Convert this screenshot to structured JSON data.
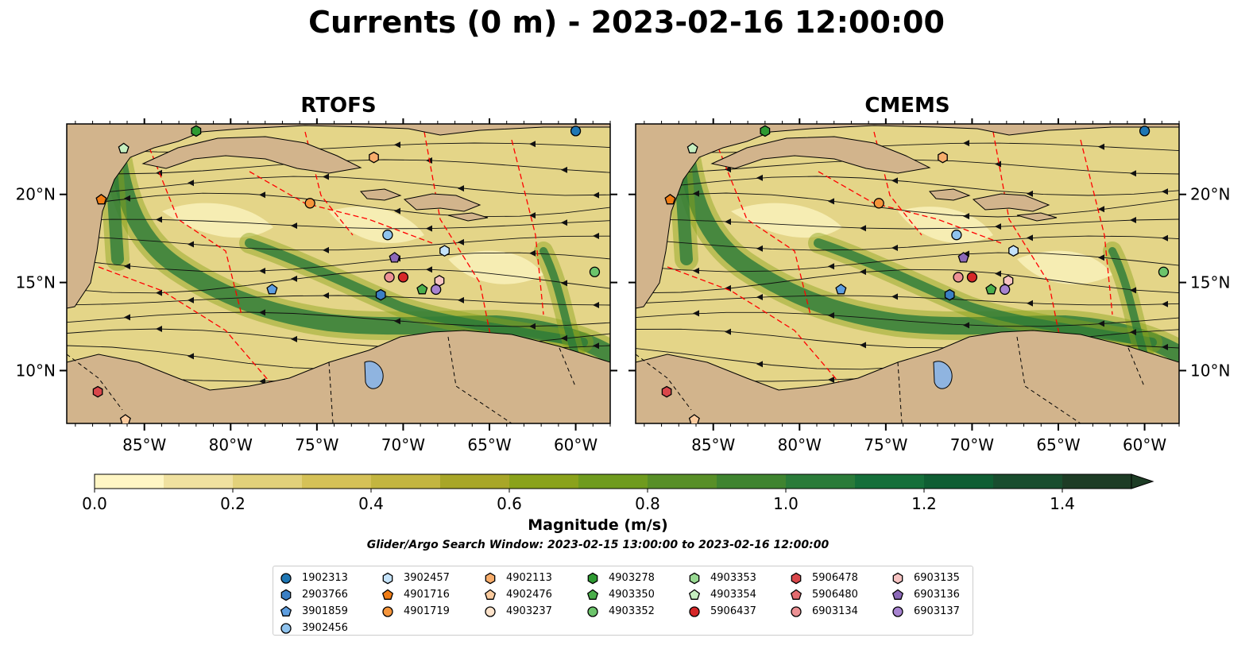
{
  "title": "Currents (0 m) - 2023-02-16 12:00:00",
  "chart_data": [
    {
      "type": "map",
      "title": "RTOFS",
      "xticks": [
        "85°W",
        "80°W",
        "75°W",
        "70°W",
        "65°W",
        "60°W"
      ],
      "yticks": [
        "10°N",
        "15°N",
        "20°N"
      ],
      "xlim": [
        -89.5,
        -58.0
      ],
      "ylim": [
        7.0,
        24.0
      ],
      "variable": "surface current magnitude (m/s)"
    },
    {
      "type": "map",
      "title": "CMEMS",
      "xticks": [
        "85°W",
        "80°W",
        "75°W",
        "70°W",
        "65°W",
        "60°W"
      ],
      "yticks": [
        "10°N",
        "15°N",
        "20°N"
      ],
      "xlim": [
        -89.5,
        -58.0
      ],
      "ylim": [
        7.0,
        24.0
      ],
      "variable": "surface current magnitude (m/s)"
    }
  ],
  "colorbar": {
    "label": "Magnitude (m/s)",
    "ticks": [
      "0.0",
      "0.2",
      "0.4",
      "0.6",
      "0.8",
      "1.0",
      "1.2",
      "1.4"
    ],
    "range": [
      0.0,
      1.5
    ],
    "extend": "max",
    "colors": [
      "#fff6c4",
      "#f0e1a0",
      "#e2d17a",
      "#d5c157",
      "#c3b540",
      "#a8a628",
      "#8aa21b",
      "#6f9b1e",
      "#588f27",
      "#3f8430",
      "#2a7b39",
      "#156f3a",
      "#0f5e33",
      "#184d2e",
      "#1d3c25"
    ]
  },
  "search_window": "Glider/Argo Search Window: 2023-02-15 13:00:00 to 2023-02-16 12:00:00",
  "legend": [
    {
      "label": "1902313",
      "marker": "circle",
      "color": "#1f77b4"
    },
    {
      "label": "2903766",
      "marker": "hexagon",
      "color": "#3b7fc4"
    },
    {
      "label": "3901859",
      "marker": "pentagon",
      "color": "#5e9ee0"
    },
    {
      "label": "3902456",
      "marker": "circle",
      "color": "#8fc3ee"
    },
    {
      "label": "3902457",
      "marker": "hexagon",
      "color": "#c5e3fa"
    },
    {
      "label": "4901716",
      "marker": "pentagon",
      "color": "#f07c14"
    },
    {
      "label": "4901719",
      "marker": "circle",
      "color": "#f5953b"
    },
    {
      "label": "4902113",
      "marker": "hexagon",
      "color": "#f8ad6b"
    },
    {
      "label": "4902476",
      "marker": "pentagon",
      "color": "#fbcb9e"
    },
    {
      "label": "4903237",
      "marker": "circle",
      "color": "#fde3cb"
    },
    {
      "label": "4903278",
      "marker": "hexagon",
      "color": "#2e9a32"
    },
    {
      "label": "4903350",
      "marker": "pentagon",
      "color": "#4bae4b"
    },
    {
      "label": "4903352",
      "marker": "circle",
      "color": "#6cc46b"
    },
    {
      "label": "4903353",
      "marker": "hexagon",
      "color": "#98d992"
    },
    {
      "label": "4903354",
      "marker": "pentagon",
      "color": "#c6efc0"
    },
    {
      "label": "5906437",
      "marker": "circle",
      "color": "#d62728"
    },
    {
      "label": "5906478",
      "marker": "hexagon",
      "color": "#d9474b"
    },
    {
      "label": "5906480",
      "marker": "pentagon",
      "color": "#e36b6f"
    },
    {
      "label": "6903134",
      "marker": "circle",
      "color": "#ec9194"
    },
    {
      "label": "6903135",
      "marker": "hexagon",
      "color": "#f6c3c2"
    },
    {
      "label": "6903136",
      "marker": "pentagon",
      "color": "#8c69b8"
    },
    {
      "label": "6903137",
      "marker": "circle",
      "color": "#a783d0"
    }
  ],
  "floats": [
    {
      "label": "1902313",
      "lon": -60.0,
      "lat": 23.6
    },
    {
      "label": "4903278",
      "lon": -82.0,
      "lat": 23.6
    },
    {
      "label": "4903354",
      "lon": -86.2,
      "lat": 22.6
    },
    {
      "label": "4902113",
      "lon": -71.7,
      "lat": 22.1
    },
    {
      "label": "4901716",
      "lon": -87.5,
      "lat": 19.7
    },
    {
      "label": "4901719",
      "lon": -75.4,
      "lat": 19.5
    },
    {
      "label": "3902456",
      "lon": -70.9,
      "lat": 17.7
    },
    {
      "label": "3902457",
      "lon": -67.6,
      "lat": 16.8
    },
    {
      "label": "6903136",
      "lon": -70.5,
      "lat": 16.4
    },
    {
      "label": "4903352",
      "lon": -58.9,
      "lat": 15.6
    },
    {
      "label": "6903134",
      "lon": -70.8,
      "lat": 15.3
    },
    {
      "label": "5906437",
      "lon": -70.0,
      "lat": 15.3
    },
    {
      "label": "6903135",
      "lon": -67.9,
      "lat": 15.1
    },
    {
      "label": "4903350",
      "lon": -68.9,
      "lat": 14.6
    },
    {
      "label": "6903137",
      "lon": -68.1,
      "lat": 14.6
    },
    {
      "label": "3901859",
      "lon": -77.6,
      "lat": 14.6
    },
    {
      "label": "2903766",
      "lon": -71.3,
      "lat": 14.3
    },
    {
      "label": "5906478",
      "lon": -87.7,
      "lat": 8.8
    },
    {
      "label": "4902476",
      "lon": -86.1,
      "lat": 7.2
    }
  ]
}
